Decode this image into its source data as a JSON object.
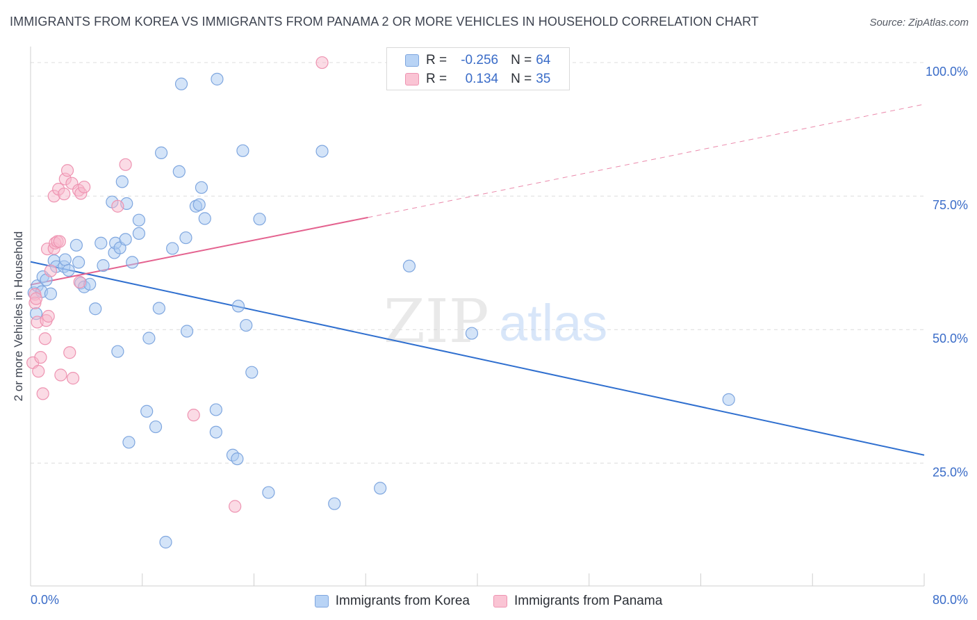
{
  "header": {
    "title": "IMMIGRANTS FROM KOREA VS IMMIGRANTS FROM PANAMA 2 OR MORE VEHICLES IN HOUSEHOLD CORRELATION CHART",
    "source": "Source: ZipAtlas.com"
  },
  "watermark": {
    "zip": "ZIP",
    "atlas": "atlas"
  },
  "stats": {
    "korea": {
      "r_label": "R =",
      "r_value": "-0.256",
      "n_label": "N =",
      "n_value": "64"
    },
    "panama": {
      "r_label": "R =",
      "r_value": "0.134",
      "n_label": "N =",
      "n_value": "35"
    }
  },
  "legend": {
    "korea": "Immigrants from Korea",
    "panama": "Immigrants from Panama"
  },
  "colors": {
    "korea_fill": "#a9c9f2",
    "korea_stroke": "#7ea6df",
    "korea_line": "#2f6fcf",
    "panama_fill": "#f7b8cb",
    "panama_stroke": "#ee93b1",
    "panama_line": "#e4628f",
    "grid": "#dcdcdc",
    "tick_label": "#3a6cc8"
  },
  "chart_data": {
    "type": "scatter",
    "title": "IMMIGRANTS FROM KOREA VS IMMIGRANTS FROM PANAMA 2 OR MORE VEHICLES IN HOUSEHOLD CORRELATION CHART",
    "xlabel": "",
    "ylabel": "2 or more Vehicles in Household",
    "xlim": [
      0,
      80
    ],
    "ylim": [
      2,
      103
    ],
    "x_tick_labels": [
      "0.0%",
      "80.0%"
    ],
    "y_ticks": [
      25,
      50,
      75,
      100
    ],
    "y_tick_labels": [
      "25.0%",
      "50.0%",
      "75.0%",
      "100.0%"
    ],
    "grid": true,
    "legend_position": "bottom-center",
    "series": [
      {
        "name": "Immigrants from Korea",
        "points": [
          [
            0.3,
            56.9
          ],
          [
            0.5,
            53.0
          ],
          [
            0.6,
            58.2
          ],
          [
            1.0,
            57.1
          ],
          [
            1.1,
            59.9
          ],
          [
            1.4,
            59.3
          ],
          [
            1.8,
            56.7
          ],
          [
            2.1,
            62.9
          ],
          [
            2.3,
            61.8
          ],
          [
            3.0,
            61.8
          ],
          [
            3.1,
            63.1
          ],
          [
            3.4,
            61.1
          ],
          [
            4.1,
            65.8
          ],
          [
            4.3,
            62.6
          ],
          [
            4.5,
            58.7
          ],
          [
            4.8,
            58.0
          ],
          [
            5.3,
            58.5
          ],
          [
            5.8,
            53.9
          ],
          [
            6.3,
            66.2
          ],
          [
            6.5,
            62.0
          ],
          [
            7.3,
            73.9
          ],
          [
            7.5,
            64.4
          ],
          [
            7.6,
            66.2
          ],
          [
            7.8,
            45.9
          ],
          [
            8.0,
            65.3
          ],
          [
            8.2,
            77.7
          ],
          [
            8.5,
            66.9
          ],
          [
            8.6,
            73.6
          ],
          [
            8.8,
            28.9
          ],
          [
            9.1,
            62.6
          ],
          [
            9.7,
            70.5
          ],
          [
            9.7,
            68.0
          ],
          [
            10.4,
            34.7
          ],
          [
            10.6,
            48.4
          ],
          [
            11.2,
            31.8
          ],
          [
            11.5,
            54.0
          ],
          [
            11.7,
            83.1
          ],
          [
            12.1,
            10.2
          ],
          [
            12.7,
            65.2
          ],
          [
            13.3,
            79.6
          ],
          [
            13.5,
            96.0
          ],
          [
            13.9,
            67.2
          ],
          [
            14.0,
            49.7
          ],
          [
            14.8,
            73.1
          ],
          [
            15.1,
            73.4
          ],
          [
            15.3,
            76.6
          ],
          [
            15.6,
            70.8
          ],
          [
            16.6,
            35.0
          ],
          [
            16.6,
            30.8
          ],
          [
            16.7,
            96.9
          ],
          [
            18.1,
            26.5
          ],
          [
            18.5,
            25.8
          ],
          [
            18.6,
            54.4
          ],
          [
            19.0,
            83.5
          ],
          [
            19.3,
            50.8
          ],
          [
            19.8,
            42.0
          ],
          [
            20.5,
            70.7
          ],
          [
            21.3,
            19.5
          ],
          [
            26.1,
            83.4
          ],
          [
            27.2,
            17.4
          ],
          [
            31.3,
            20.3
          ],
          [
            33.9,
            61.9
          ],
          [
            39.5,
            49.3
          ],
          [
            62.5,
            36.9
          ]
        ]
      },
      {
        "name": "Immigrants from Panama",
        "points": [
          [
            0.2,
            43.8
          ],
          [
            0.4,
            56.6
          ],
          [
            0.4,
            55.0
          ],
          [
            0.5,
            55.8
          ],
          [
            0.6,
            51.4
          ],
          [
            0.7,
            42.2
          ],
          [
            0.9,
            44.8
          ],
          [
            1.1,
            38.0
          ],
          [
            1.3,
            48.3
          ],
          [
            1.4,
            51.7
          ],
          [
            1.5,
            65.1
          ],
          [
            1.6,
            52.5
          ],
          [
            1.8,
            61.0
          ],
          [
            2.1,
            75.0
          ],
          [
            2.1,
            65.2
          ],
          [
            2.2,
            66.2
          ],
          [
            2.4,
            66.5
          ],
          [
            2.5,
            76.3
          ],
          [
            2.6,
            66.5
          ],
          [
            2.7,
            41.5
          ],
          [
            3.0,
            75.4
          ],
          [
            3.1,
            78.2
          ],
          [
            3.3,
            79.8
          ],
          [
            3.5,
            45.7
          ],
          [
            3.7,
            77.4
          ],
          [
            3.8,
            40.9
          ],
          [
            4.3,
            76.1
          ],
          [
            4.4,
            58.9
          ],
          [
            4.5,
            75.5
          ],
          [
            4.8,
            76.7
          ],
          [
            7.8,
            73.1
          ],
          [
            8.5,
            80.9
          ],
          [
            14.6,
            34.0
          ],
          [
            18.3,
            16.9
          ],
          [
            26.1,
            100.0
          ]
        ]
      }
    ],
    "trend_lines": [
      {
        "series": "Immigrants from Korea",
        "x": [
          0,
          80
        ],
        "y": [
          62.7,
          26.5
        ],
        "style": "solid"
      },
      {
        "series": "Immigrants from Panama",
        "x": [
          0,
          30.2
        ],
        "y": [
          58.4,
          71.0
        ],
        "style": "solid"
      },
      {
        "series": "Immigrants from Panama",
        "x": [
          30.2,
          80
        ],
        "y": [
          71.0,
          92.2
        ],
        "style": "dashed"
      }
    ]
  }
}
